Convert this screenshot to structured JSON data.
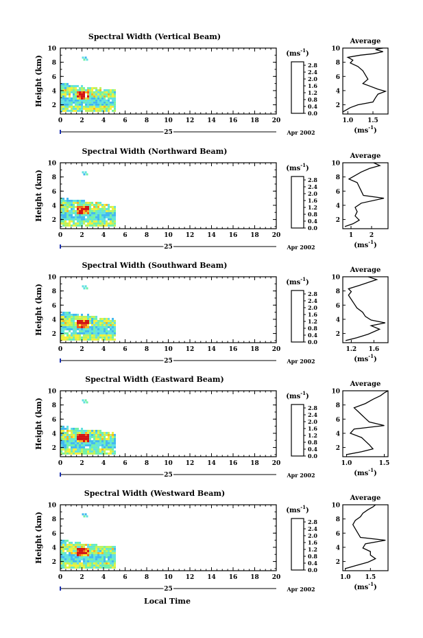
{
  "chart_data": {
    "type": "heatmap",
    "figure": {
      "xlabel": "Local Time",
      "date_label": "Apr 2002",
      "day_label": "25",
      "colorbar_unit": "(ms",
      "colorbar_unit_exp": "-1",
      "colorbar_unit_close": ")",
      "colorbar_ticks": [
        "0.0",
        "0.4",
        "0.8",
        "1.2",
        "1.6",
        "2.0",
        "2.4",
        "2.8"
      ],
      "colorbar_range": [
        0.0,
        3.0
      ],
      "colorbar_colors": [
        "#1b1b60",
        "#2c2ccf",
        "#2f6ee8",
        "#3fb7f0",
        "#5fe0e0",
        "#6ff0a6",
        "#bdf25a",
        "#f2ef3a",
        "#f7b321",
        "#ef5a1a",
        "#d11010"
      ],
      "x_ticks": [
        "0",
        "2",
        "4",
        "6",
        "8",
        "10",
        "12",
        "14",
        "16",
        "18",
        "20"
      ],
      "x_range": [
        0,
        20
      ],
      "y_ticks": [
        "2",
        "4",
        "6",
        "8",
        "10"
      ],
      "y_range": [
        0.7,
        10
      ],
      "y_label": "Height (km)",
      "avg_title": "Average",
      "avg_unit": "(ms",
      "avg_unit_exp": "-1",
      "avg_unit_close": ")",
      "data_coverage_hours": [
        0,
        5
      ]
    },
    "panels": [
      {
        "title": "Spectral Width (Vertical Beam)",
        "avg_xticks": [
          "1.0",
          "1.5"
        ],
        "avg_xrange": [
          0.9,
          1.8
        ],
        "avg_xtick_values": [
          1.0,
          1.5
        ],
        "avg_profile": [
          [
            0.9,
            1.0
          ],
          [
            1.05,
            1.6
          ],
          [
            1.2,
            2.0
          ],
          [
            1.5,
            2.4
          ],
          [
            1.55,
            3.0
          ],
          [
            1.6,
            3.5
          ],
          [
            1.75,
            3.9
          ],
          [
            1.6,
            4.2
          ],
          [
            1.45,
            4.6
          ],
          [
            1.3,
            5.0
          ],
          [
            1.4,
            5.6
          ],
          [
            1.35,
            6.2
          ],
          [
            1.3,
            6.8
          ],
          [
            1.2,
            7.4
          ],
          [
            1.05,
            7.9
          ],
          [
            1.1,
            8.3
          ],
          [
            1.0,
            8.7
          ],
          [
            1.25,
            9.0
          ],
          [
            1.5,
            9.2
          ],
          [
            1.7,
            9.5
          ],
          [
            1.55,
            9.8
          ],
          [
            1.7,
            10.0
          ]
        ]
      },
      {
        "title": "Spectral Width (Northward Beam)",
        "avg_xticks": [
          "1",
          "2"
        ],
        "avg_xrange": [
          0.6,
          2.8
        ],
        "avg_xtick_values": [
          1,
          2
        ],
        "avg_profile": [
          [
            0.7,
            1.0
          ],
          [
            1.1,
            1.4
          ],
          [
            1.4,
            1.9
          ],
          [
            1.2,
            2.5
          ],
          [
            1.3,
            3.1
          ],
          [
            1.2,
            3.7
          ],
          [
            1.5,
            4.3
          ],
          [
            2.6,
            5.0
          ],
          [
            1.6,
            5.4
          ],
          [
            1.5,
            6.0
          ],
          [
            1.4,
            6.6
          ],
          [
            1.3,
            7.2
          ],
          [
            0.9,
            7.7
          ],
          [
            1.2,
            8.2
          ],
          [
            1.5,
            8.7
          ],
          [
            1.9,
            9.2
          ],
          [
            2.4,
            9.6
          ],
          [
            2.1,
            10.0
          ]
        ]
      },
      {
        "title": "Spectral Width (Southward Beam)",
        "avg_xticks": [
          "1.2",
          "1.6"
        ],
        "avg_xrange": [
          1.05,
          1.85
        ],
        "avg_xtick_values": [
          1.2,
          1.6
        ],
        "avg_profile": [
          [
            1.1,
            1.0
          ],
          [
            1.3,
            1.4
          ],
          [
            1.5,
            1.9
          ],
          [
            1.7,
            2.6
          ],
          [
            1.55,
            3.1
          ],
          [
            1.8,
            3.5
          ],
          [
            1.55,
            3.9
          ],
          [
            1.45,
            4.4
          ],
          [
            1.4,
            5.0
          ],
          [
            1.3,
            5.6
          ],
          [
            1.25,
            6.2
          ],
          [
            1.2,
            6.8
          ],
          [
            1.15,
            7.4
          ],
          [
            1.2,
            7.9
          ],
          [
            1.15,
            8.3
          ],
          [
            1.35,
            8.8
          ],
          [
            1.5,
            9.2
          ],
          [
            1.65,
            9.6
          ],
          [
            1.5,
            10.0
          ]
        ]
      },
      {
        "title": "Spectral Width (Eastward Beam)",
        "avg_xticks": [
          "1.0",
          "1.5"
        ],
        "avg_xrange": [
          0.95,
          1.55
        ],
        "avg_xtick_values": [
          1.0,
          1.5
        ],
        "avg_profile": [
          [
            1.0,
            1.0
          ],
          [
            1.2,
            1.4
          ],
          [
            1.35,
            1.8
          ],
          [
            1.3,
            2.4
          ],
          [
            1.25,
            2.9
          ],
          [
            1.2,
            3.4
          ],
          [
            1.05,
            4.0
          ],
          [
            1.1,
            4.6
          ],
          [
            1.5,
            5.1
          ],
          [
            1.3,
            5.6
          ],
          [
            1.25,
            6.1
          ],
          [
            1.2,
            6.6
          ],
          [
            1.15,
            7.1
          ],
          [
            1.1,
            7.6
          ],
          [
            1.25,
            8.2
          ],
          [
            1.35,
            8.8
          ],
          [
            1.45,
            9.3
          ],
          [
            1.5,
            9.7
          ],
          [
            1.55,
            10.0
          ]
        ]
      },
      {
        "title": "Spectral Width (Westward Beam)",
        "avg_xticks": [
          "1.0",
          "1.5"
        ],
        "avg_xrange": [
          0.95,
          1.85
        ],
        "avg_xtick_values": [
          1.0,
          1.5
        ],
        "avg_profile": [
          [
            1.0,
            1.0
          ],
          [
            1.2,
            1.4
          ],
          [
            1.45,
            1.9
          ],
          [
            1.6,
            2.4
          ],
          [
            1.5,
            2.9
          ],
          [
            1.5,
            3.4
          ],
          [
            1.35,
            3.9
          ],
          [
            1.4,
            4.5
          ],
          [
            1.8,
            5.0
          ],
          [
            1.3,
            5.4
          ],
          [
            1.25,
            6.0
          ],
          [
            1.2,
            6.6
          ],
          [
            1.15,
            7.2
          ],
          [
            1.2,
            7.8
          ],
          [
            1.3,
            8.3
          ],
          [
            1.35,
            8.8
          ],
          [
            1.45,
            9.3
          ],
          [
            1.55,
            9.7
          ],
          [
            1.6,
            10.0
          ]
        ]
      }
    ]
  }
}
